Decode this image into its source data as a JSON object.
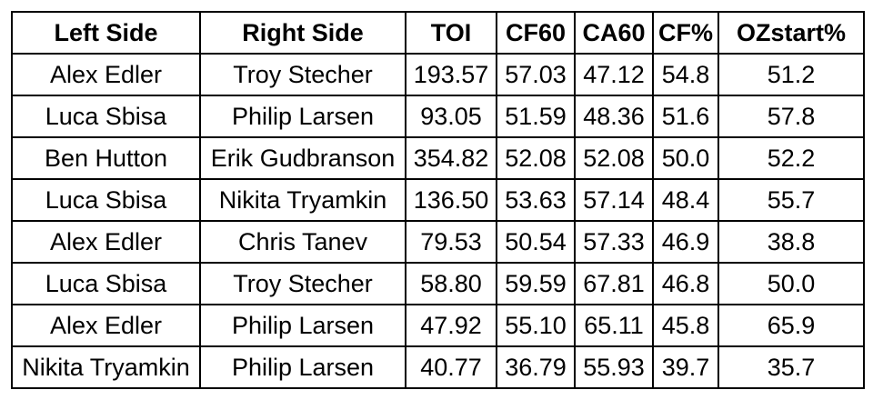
{
  "table": {
    "headers": [
      "Left Side",
      "Right Side",
      "TOI",
      "CF60",
      "CA60",
      "CF%",
      "OZstart%"
    ],
    "rows": [
      [
        "Alex Edler",
        "Troy Stecher",
        "193.57",
        "57.03",
        "47.12",
        "54.8",
        "51.2"
      ],
      [
        "Luca Sbisa",
        "Philip Larsen",
        "93.05",
        "51.59",
        "48.36",
        "51.6",
        "57.8"
      ],
      [
        "Ben Hutton",
        "Erik Gudbranson",
        "354.82",
        "52.08",
        "52.08",
        "50.0",
        "52.2"
      ],
      [
        "Luca Sbisa",
        "Nikita Tryamkin",
        "136.50",
        "53.63",
        "57.14",
        "48.4",
        "55.7"
      ],
      [
        "Alex Edler",
        "Chris Tanev",
        "79.53",
        "50.54",
        "57.33",
        "46.9",
        "38.8"
      ],
      [
        "Luca Sbisa",
        "Troy Stecher",
        "58.80",
        "59.59",
        "67.81",
        "46.8",
        "50.0"
      ],
      [
        "Alex Edler",
        "Philip Larsen",
        "47.92",
        "55.10",
        "65.11",
        "45.8",
        "65.9"
      ],
      [
        "Nikita Tryamkin",
        "Philip Larsen",
        "40.77",
        "36.79",
        "55.93",
        "39.7",
        "35.7"
      ]
    ]
  }
}
